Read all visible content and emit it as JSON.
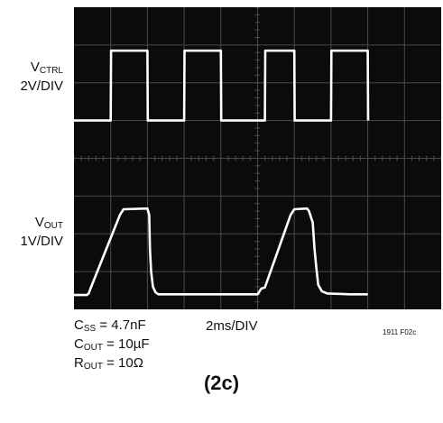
{
  "chart_data": {
    "type": "line",
    "title": "",
    "time_scale": "2ms/DIV",
    "figure_id": "1911 F02c",
    "caption": "(2c)",
    "grid": true,
    "divisions": {
      "x": 10,
      "y": 8
    },
    "channels": [
      {
        "name": "V",
        "sub": "CTRL",
        "scale": "2V/DIV",
        "color": "#ffffff",
        "unit": "div",
        "points": [
          [
            0.0,
            5.0
          ],
          [
            1.0,
            5.0
          ],
          [
            1.01,
            6.85
          ],
          [
            2.0,
            6.85
          ],
          [
            2.01,
            5.0
          ],
          [
            3.0,
            5.0
          ],
          [
            3.01,
            6.85
          ],
          [
            4.0,
            6.85
          ],
          [
            4.01,
            5.0
          ],
          [
            5.2,
            5.0
          ],
          [
            5.21,
            6.85
          ],
          [
            6.0,
            6.85
          ],
          [
            6.01,
            5.0
          ],
          [
            7.0,
            5.0
          ],
          [
            7.01,
            6.85
          ],
          [
            8.0,
            6.85
          ],
          [
            8.01,
            5.0
          ]
        ]
      },
      {
        "name": "V",
        "sub": "OUT",
        "scale": "1V/DIV",
        "color": "#ffffff",
        "unit": "div",
        "points": [
          [
            0.0,
            0.38
          ],
          [
            0.35,
            0.38
          ],
          [
            0.4,
            0.42
          ],
          [
            0.45,
            0.55
          ],
          [
            1.25,
            2.5
          ],
          [
            1.35,
            2.65
          ],
          [
            2.0,
            2.67
          ],
          [
            2.05,
            2.5
          ],
          [
            2.07,
            1.6
          ],
          [
            2.1,
            1.0
          ],
          [
            2.15,
            0.6
          ],
          [
            2.22,
            0.45
          ],
          [
            2.3,
            0.4
          ],
          [
            3.0,
            0.4
          ],
          [
            3.05,
            0.4
          ],
          [
            3.5,
            0.4
          ],
          [
            4.0,
            0.4
          ],
          [
            4.5,
            0.4
          ],
          [
            5.0,
            0.4
          ],
          [
            5.1,
            0.55
          ],
          [
            5.2,
            0.58
          ],
          [
            5.9,
            2.5
          ],
          [
            6.0,
            2.65
          ],
          [
            6.35,
            2.67
          ],
          [
            6.4,
            2.6
          ],
          [
            6.5,
            2.3
          ],
          [
            6.55,
            1.6
          ],
          [
            6.6,
            1.1
          ],
          [
            6.65,
            0.65
          ],
          [
            6.75,
            0.48
          ],
          [
            6.9,
            0.42
          ],
          [
            7.5,
            0.4
          ],
          [
            8.0,
            0.4
          ]
        ]
      }
    ]
  },
  "labels": {
    "ctrl_name": "V",
    "ctrl_sub": "CTRL",
    "ctrl_scale": "2V/DIV",
    "out_name": "V",
    "out_sub": "OUT",
    "out_scale": "1V/DIV"
  },
  "notes": [
    {
      "pre": "C",
      "sub": "SS",
      "post": " = 4.7nF"
    },
    {
      "pre": "C",
      "sub": "OUT",
      "post": " = 10µF"
    },
    {
      "pre": "R",
      "sub": "OUT",
      "post": " = 10Ω"
    }
  ],
  "colors": {
    "screen": "#0b0b0b",
    "grid": "#4a4a4a",
    "trace": "#ffffff"
  }
}
